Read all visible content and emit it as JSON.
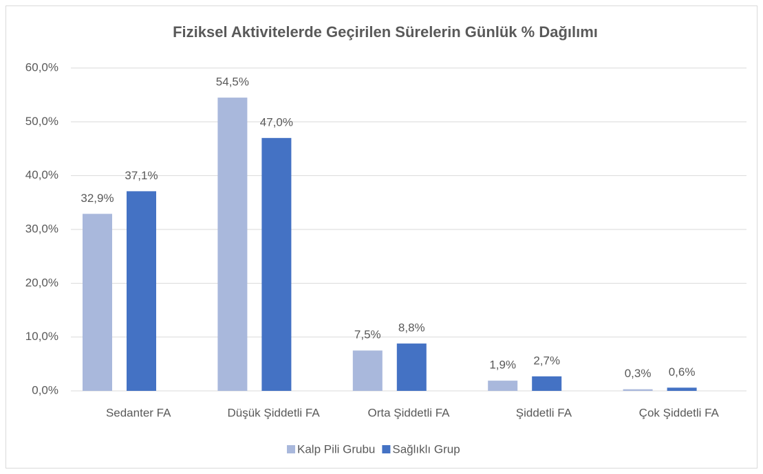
{
  "chart_data": {
    "type": "bar",
    "title": "Fiziksel Aktivitelerde Geçirilen Sürelerin Günlük % Dağılımı",
    "categories": [
      "Sedanter FA",
      "Düşük Şiddetli FA",
      "Orta Şiddetli FA",
      "Şiddetli FA",
      "Çok Şiddetli FA"
    ],
    "series": [
      {
        "name": "Kalp Pili Grubu",
        "color": "#a9b8dc",
        "values": [
          32.9,
          54.5,
          7.5,
          1.9,
          0.3
        ],
        "value_labels": [
          "32,9%",
          "54,5%",
          "7,5%",
          "1,9%",
          "0,3%"
        ]
      },
      {
        "name": "Sağlıklı Grup",
        "color": "#4472c4",
        "values": [
          37.1,
          47.0,
          8.8,
          2.7,
          0.6
        ],
        "value_labels": [
          "37,1%",
          "47,0%",
          "8,8%",
          "2,7%",
          "0,6%"
        ]
      }
    ],
    "ylim": [
      0,
      60
    ],
    "yticks": [
      {
        "value": 0,
        "label": "0,0%"
      },
      {
        "value": 10,
        "label": "10,0%"
      },
      {
        "value": 20,
        "label": "20,0%"
      },
      {
        "value": 30,
        "label": "30,0%"
      },
      {
        "value": 40,
        "label": "40,0%"
      },
      {
        "value": 50,
        "label": "50,0%"
      },
      {
        "value": 60,
        "label": "60,0%"
      }
    ],
    "grid": true,
    "legend": "bottom"
  }
}
